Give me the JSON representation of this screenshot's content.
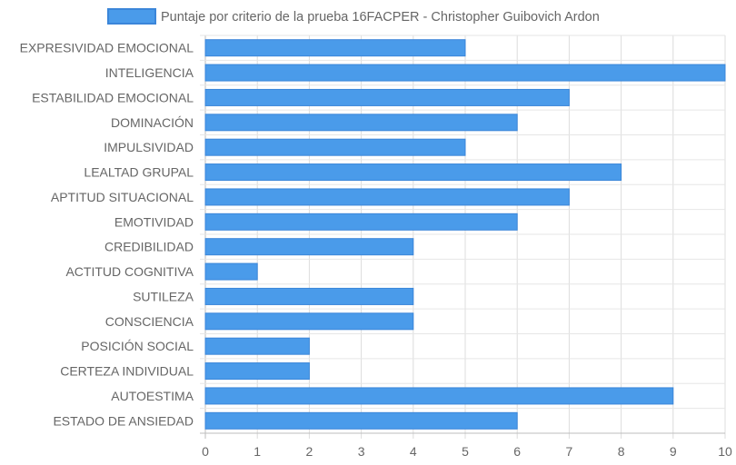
{
  "chart_data": {
    "type": "bar",
    "orientation": "horizontal",
    "legend": {
      "position": "top",
      "label": "Puntaje por criterio de la prueba 16FACPER - Christopher Guibovich Ardon"
    },
    "series": [
      {
        "name": "Puntaje por criterio de la prueba 16FACPER - Christopher Guibovich Ardon",
        "color": "#4a9bea",
        "border_color": "#3b86d9",
        "values": [
          5,
          10,
          7,
          6,
          5,
          8,
          7,
          6,
          4,
          1,
          4,
          4,
          2,
          2,
          9,
          6
        ]
      }
    ],
    "categories": [
      "EXPRESIVIDAD EMOCIONAL",
      "INTELIGENCIA",
      "ESTABILIDAD EMOCIONAL",
      "DOMINACIÓN",
      "IMPULSIVIDAD",
      "LEALTAD GRUPAL",
      "APTITUD SITUACIONAL",
      "EMOTIVIDAD",
      "CREDIBILIDAD",
      "ACTITUD COGNITIVA",
      "SUTILEZA",
      "CONSCIENCIA",
      "POSICIÓN SOCIAL",
      "CERTEZA INDIVIDUAL",
      "AUTOESTIMA",
      "ESTADO DE ANSIEDAD"
    ],
    "x_ticks": [
      "0",
      "1",
      "2",
      "3",
      "4",
      "5",
      "6",
      "7",
      "8",
      "9",
      "10"
    ],
    "xlim": [
      0,
      10
    ],
    "grid": true,
    "title": "",
    "xlabel": "",
    "ylabel": ""
  }
}
